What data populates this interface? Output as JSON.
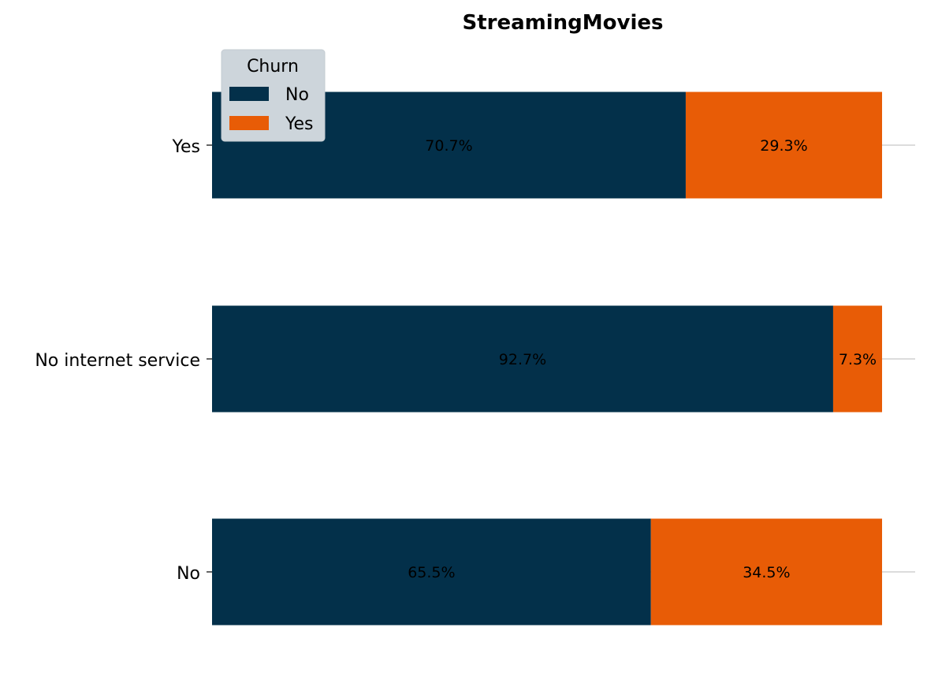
{
  "chart_data": {
    "type": "bar",
    "orientation": "horizontal",
    "stacked": true,
    "title": "StreamingMovies",
    "xlabel": "",
    "ylabel": "",
    "categories": [
      "Yes",
      "No internet service",
      "No"
    ],
    "series": [
      {
        "name": "No",
        "values": [
          70.7,
          92.7,
          65.5
        ],
        "labels": [
          "70.7%",
          "92.7%",
          "65.5%"
        ],
        "color": "#03304a"
      },
      {
        "name": "Yes",
        "values": [
          29.3,
          7.3,
          34.5
        ],
        "labels": [
          "29.3%",
          "7.3%",
          "34.5%"
        ],
        "color": "#e85c06"
      }
    ],
    "xlim": [
      0,
      100
    ],
    "grid": "y-ticks",
    "legend": {
      "title": "Churn",
      "position": "top-left",
      "entries": [
        "No",
        "Yes"
      ]
    }
  }
}
